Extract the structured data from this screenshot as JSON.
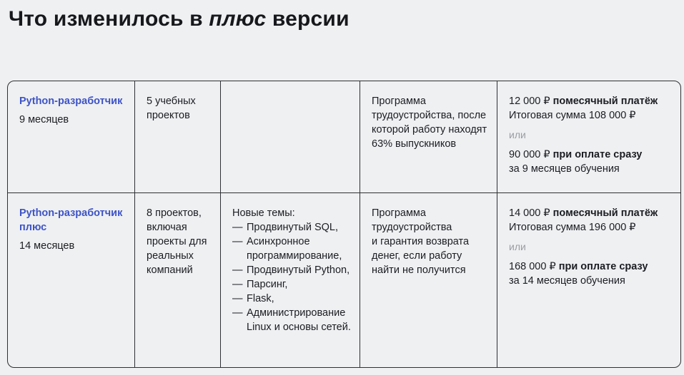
{
  "title": {
    "prefix": "Что изменилось в ",
    "italic": "плюс",
    "suffix": " версии"
  },
  "colors": {
    "background": "#eef0f2",
    "accent_blue": "#3e53c6",
    "muted_gray": "#9a9da2",
    "border": "#2e3033",
    "text": "#1b1d22"
  },
  "table": {
    "topics_dash": "—",
    "rows": [
      {
        "course": "Python-разработчик",
        "duration": "9 месяцев",
        "projects": "5 учебных\nпроектов",
        "topics_heading": "",
        "employment": "Программа\nтрудоустройства, после\nкоторой работу находят\n63% выпускников",
        "pricing": {
          "monthly_amount": "12 000 ₽",
          "monthly_label": "помесячный платёж",
          "total_line": "Итоговая сумма 108 000 ₽",
          "or_label": "или",
          "upfront_amount": "90 000 ₽",
          "upfront_label": "при оплате сразу",
          "upfront_note": "за 9 месяцев обучения"
        }
      },
      {
        "course": "Python-разработчик плюс",
        "duration": "14 месяцев",
        "projects": "8 проектов,\nвключая\nпроекты для\nреальных\nкомпаний",
        "topics_heading": "Новые темы:",
        "topics": [
          "Продвинутый SQL,",
          "Асинхронное\nпрограммирование,",
          "Продвинутый Python,",
          "Парсинг,",
          "Flask,",
          "Администрирование\nLinux и основы сетей."
        ],
        "employment": "Программа\nтрудоустройства\nи гарантия возврата\nденег, если работу\nнайти не получится",
        "pricing": {
          "monthly_amount": "14 000 ₽",
          "monthly_label": "помесячный платёж",
          "total_line": "Итоговая сумма 196 000 ₽",
          "or_label": "или",
          "upfront_amount": "168 000 ₽",
          "upfront_label": "при оплате сразу",
          "upfront_note": "за 14 месяцев обучения"
        }
      }
    ]
  }
}
